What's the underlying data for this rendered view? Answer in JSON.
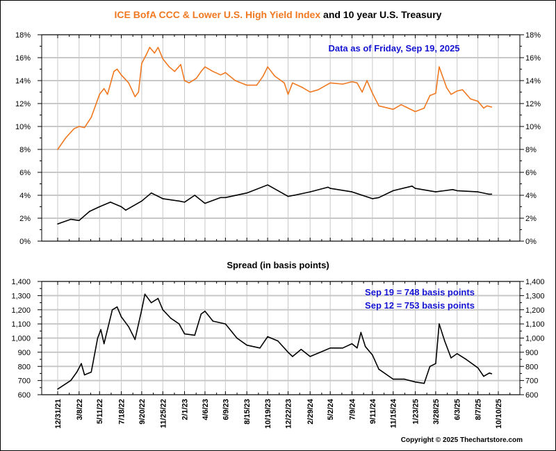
{
  "title": {
    "part1": "ICE BofA CCC & Lower U.S. High Yield Index",
    "part2": " and 10 year U.S. Treasury"
  },
  "copyright": "Copyright © 2025 Thechartstore.com",
  "colors": {
    "ccc": "#f07820",
    "treasury": "#000000",
    "annotation": "#1414d2",
    "grid": "#c8c8c8"
  },
  "chart_data": [
    {
      "type": "line",
      "title": "ICE BofA CCC & Lower U.S. High Yield Index and 10 year U.S. Treasury",
      "annotation": "Data as of Friday, Sep 19, 2025",
      "ylim": [
        0,
        18
      ],
      "yticks": [
        "0%",
        "2%",
        "4%",
        "6%",
        "8%",
        "10%",
        "12%",
        "14%",
        "16%",
        "18%"
      ],
      "grid": true,
      "series": [
        {
          "name": "ICE BofA CCC & Lower U.S. High Yield Index",
          "color": "#f07820",
          "points": [
            [
              "2021-12-31",
              8.0
            ],
            [
              "2022-01-25",
              9.0
            ],
            [
              "2022-02-20",
              9.8
            ],
            [
              "2022-03-08",
              10.0
            ],
            [
              "2022-03-25",
              9.9
            ],
            [
              "2022-04-15",
              10.8
            ],
            [
              "2022-05-11",
              12.8
            ],
            [
              "2022-05-25",
              13.3
            ],
            [
              "2022-06-05",
              12.8
            ],
            [
              "2022-06-25",
              14.8
            ],
            [
              "2022-07-05",
              15.0
            ],
            [
              "2022-07-18",
              14.5
            ],
            [
              "2022-08-10",
              13.8
            ],
            [
              "2022-08-30",
              12.6
            ],
            [
              "2022-09-10",
              13.0
            ],
            [
              "2022-09-20",
              15.5
            ],
            [
              "2022-10-05",
              16.3
            ],
            [
              "2022-10-15",
              16.9
            ],
            [
              "2022-10-30",
              16.4
            ],
            [
              "2022-11-10",
              16.9
            ],
            [
              "2022-11-25",
              15.9
            ],
            [
              "2022-12-15",
              15.2
            ],
            [
              "2023-01-01",
              14.8
            ],
            [
              "2023-01-20",
              15.4
            ],
            [
              "2023-02-01",
              14.0
            ],
            [
              "2023-02-15",
              13.8
            ],
            [
              "2023-03-10",
              14.2
            ],
            [
              "2023-03-25",
              14.8
            ],
            [
              "2023-04-06",
              15.2
            ],
            [
              "2023-05-01",
              14.8
            ],
            [
              "2023-05-25",
              14.5
            ],
            [
              "2023-06-09",
              14.7
            ],
            [
              "2023-07-10",
              14.0
            ],
            [
              "2023-08-15",
              13.6
            ],
            [
              "2023-09-15",
              13.6
            ],
            [
              "2023-10-05",
              14.4
            ],
            [
              "2023-10-19",
              15.2
            ],
            [
              "2023-11-10",
              14.4
            ],
            [
              "2023-12-10",
              13.8
            ],
            [
              "2023-12-22",
              12.8
            ],
            [
              "2024-01-05",
              13.8
            ],
            [
              "2024-02-05",
              13.4
            ],
            [
              "2024-02-29",
              13.0
            ],
            [
              "2024-03-25",
              13.2
            ],
            [
              "2024-05-02",
              13.8
            ],
            [
              "2024-06-10",
              13.7
            ],
            [
              "2024-07-09",
              13.9
            ],
            [
              "2024-07-25",
              13.8
            ],
            [
              "2024-08-10",
              13.0
            ],
            [
              "2024-08-25",
              14.0
            ],
            [
              "2024-09-11",
              12.9
            ],
            [
              "2024-10-01",
              11.8
            ],
            [
              "2024-11-15",
              11.5
            ],
            [
              "2024-12-10",
              11.9
            ],
            [
              "2024-12-25",
              11.7
            ],
            [
              "2025-01-23",
              11.3
            ],
            [
              "2025-02-20",
              11.6
            ],
            [
              "2025-03-10",
              12.7
            ],
            [
              "2025-03-28",
              12.9
            ],
            [
              "2025-04-08",
              15.2
            ],
            [
              "2025-05-01",
              13.4
            ],
            [
              "2025-05-15",
              12.8
            ],
            [
              "2025-06-03",
              13.1
            ],
            [
              "2025-06-20",
              13.2
            ],
            [
              "2025-07-15",
              12.4
            ],
            [
              "2025-08-07",
              12.2
            ],
            [
              "2025-08-25",
              11.6
            ],
            [
              "2025-09-05",
              11.8
            ],
            [
              "2025-09-19",
              11.7
            ]
          ]
        },
        {
          "name": "10 year U.S. Treasury",
          "color": "#000000",
          "points": [
            [
              "2021-12-31",
              1.5
            ],
            [
              "2022-02-10",
              1.9
            ],
            [
              "2022-03-08",
              1.8
            ],
            [
              "2022-04-10",
              2.6
            ],
            [
              "2022-05-11",
              3.0
            ],
            [
              "2022-06-14",
              3.4
            ],
            [
              "2022-07-18",
              3.0
            ],
            [
              "2022-08-01",
              2.7
            ],
            [
              "2022-09-20",
              3.5
            ],
            [
              "2022-10-20",
              4.2
            ],
            [
              "2022-11-25",
              3.7
            ],
            [
              "2023-01-15",
              3.5
            ],
            [
              "2023-02-01",
              3.4
            ],
            [
              "2023-03-05",
              4.0
            ],
            [
              "2023-04-06",
              3.3
            ],
            [
              "2023-05-25",
              3.8
            ],
            [
              "2023-06-09",
              3.8
            ],
            [
              "2023-08-15",
              4.2
            ],
            [
              "2023-10-19",
              4.9
            ],
            [
              "2023-12-22",
              3.9
            ],
            [
              "2024-01-10",
              4.0
            ],
            [
              "2024-02-29",
              4.3
            ],
            [
              "2024-04-25",
              4.7
            ],
            [
              "2024-05-02",
              4.6
            ],
            [
              "2024-07-09",
              4.3
            ],
            [
              "2024-09-11",
              3.7
            ],
            [
              "2024-10-01",
              3.8
            ],
            [
              "2024-11-15",
              4.4
            ],
            [
              "2025-01-13",
              4.8
            ],
            [
              "2025-01-23",
              4.6
            ],
            [
              "2025-03-28",
              4.3
            ],
            [
              "2025-05-20",
              4.5
            ],
            [
              "2025-06-03",
              4.4
            ],
            [
              "2025-08-07",
              4.3
            ],
            [
              "2025-09-10",
              4.1
            ],
            [
              "2025-09-19",
              4.1
            ]
          ]
        }
      ]
    },
    {
      "type": "line",
      "title": "Spread (in basis points)",
      "annotations": [
        "Sep 19 = 748 basis points",
        "Sep 12 = 753 basis points"
      ],
      "ylim": [
        600,
        1400
      ],
      "yticks": [
        "600",
        "700",
        "800",
        "900",
        "1,000",
        "1,100",
        "1,200",
        "1,300",
        "1,400"
      ],
      "xticks": [
        "12/31/21",
        "3/8/22",
        "5/11/22",
        "7/18/22",
        "9/20/22",
        "11/25/22",
        "2/1/23",
        "4/6/23",
        "6/9/23",
        "8/15/23",
        "10/19/23",
        "12/22/23",
        "2/29/24",
        "5/2/24",
        "7/9/24",
        "9/11/24",
        "11/15/24",
        "1/23/25",
        "3/28/25",
        "6/3/25",
        "8/7/25",
        "10/10/25"
      ],
      "grid": true,
      "series": [
        {
          "name": "Spread",
          "color": "#000000",
          "points": [
            [
              "2021-12-31",
              640
            ],
            [
              "2022-02-10",
              700
            ],
            [
              "2022-03-01",
              760
            ],
            [
              "2022-03-15",
              820
            ],
            [
              "2022-03-25",
              740
            ],
            [
              "2022-04-15",
              760
            ],
            [
              "2022-05-05",
              1000
            ],
            [
              "2022-05-15",
              1060
            ],
            [
              "2022-05-25",
              960
            ],
            [
              "2022-06-20",
              1200
            ],
            [
              "2022-07-05",
              1220
            ],
            [
              "2022-07-18",
              1150
            ],
            [
              "2022-08-10",
              1080
            ],
            [
              "2022-08-30",
              990
            ],
            [
              "2022-09-20",
              1200
            ],
            [
              "2022-09-30",
              1310
            ],
            [
              "2022-10-20",
              1250
            ],
            [
              "2022-11-10",
              1280
            ],
            [
              "2022-11-25",
              1200
            ],
            [
              "2022-12-20",
              1140
            ],
            [
              "2023-01-15",
              1100
            ],
            [
              "2023-02-01",
              1030
            ],
            [
              "2023-03-05",
              1020
            ],
            [
              "2023-03-25",
              1170
            ],
            [
              "2023-04-06",
              1190
            ],
            [
              "2023-05-01",
              1120
            ],
            [
              "2023-06-09",
              1100
            ],
            [
              "2023-07-15",
              1000
            ],
            [
              "2023-08-15",
              950
            ],
            [
              "2023-09-25",
              930
            ],
            [
              "2023-10-19",
              1010
            ],
            [
              "2023-11-20",
              980
            ],
            [
              "2023-12-22",
              900
            ],
            [
              "2024-01-05",
              870
            ],
            [
              "2024-02-01",
              920
            ],
            [
              "2024-02-29",
              870
            ],
            [
              "2024-04-01",
              900
            ],
            [
              "2024-05-02",
              930
            ],
            [
              "2024-06-10",
              930
            ],
            [
              "2024-07-09",
              960
            ],
            [
              "2024-07-25",
              930
            ],
            [
              "2024-08-06",
              1040
            ],
            [
              "2024-08-20",
              940
            ],
            [
              "2024-09-11",
              880
            ],
            [
              "2024-10-01",
              780
            ],
            [
              "2024-11-15",
              710
            ],
            [
              "2024-12-20",
              710
            ],
            [
              "2025-01-23",
              690
            ],
            [
              "2025-02-20",
              680
            ],
            [
              "2025-03-10",
              800
            ],
            [
              "2025-03-28",
              820
            ],
            [
              "2025-04-08",
              1100
            ],
            [
              "2025-04-25",
              980
            ],
            [
              "2025-05-15",
              860
            ],
            [
              "2025-06-03",
              890
            ],
            [
              "2025-07-01",
              850
            ],
            [
              "2025-08-07",
              790
            ],
            [
              "2025-08-25",
              730
            ],
            [
              "2025-09-12",
              753
            ],
            [
              "2025-09-19",
              748
            ]
          ]
        }
      ]
    }
  ]
}
